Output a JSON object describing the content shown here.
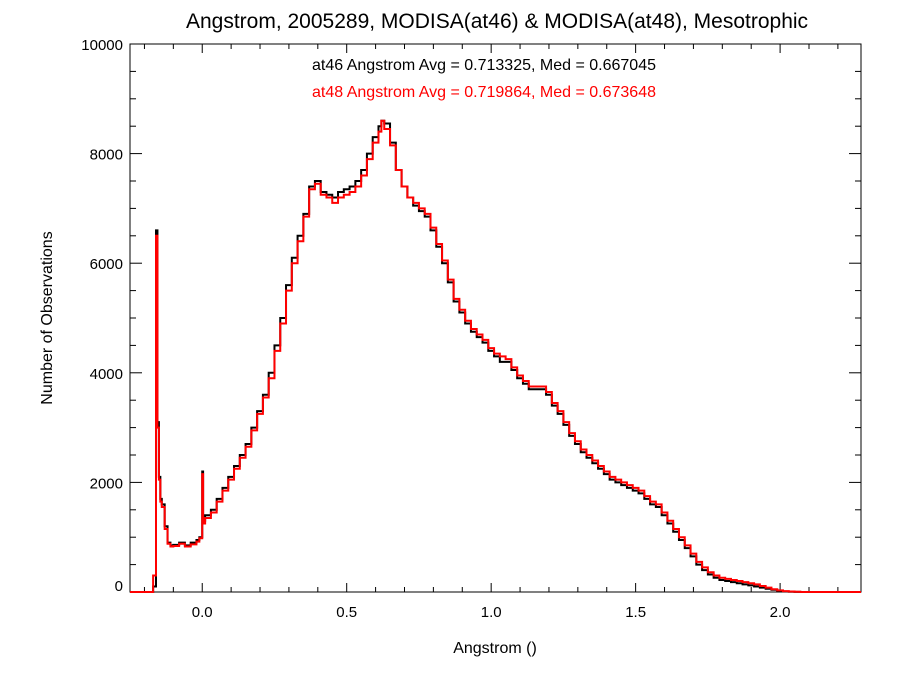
{
  "chart_data": {
    "type": "line",
    "title": "Angstrom, 2005289, MODISA(at46) & MODISA(at48), Mesotrophic",
    "xlabel": "Angstrom ()",
    "ylabel": "Number of Observations",
    "xlim": [
      -0.25,
      2.28
    ],
    "ylim": [
      0,
      10000
    ],
    "x_ticks": [
      0.0,
      0.5,
      1.0,
      1.5,
      2.0
    ],
    "x_tick_labels": [
      "0.0",
      "0.5",
      "1.0",
      "1.5",
      "2.0"
    ],
    "y_ticks": [
      0,
      2000,
      4000,
      6000,
      8000,
      10000
    ],
    "y_tick_labels": [
      "0",
      "2000",
      "4000",
      "6000",
      "8000",
      "10000"
    ],
    "grid": false,
    "annotations": [
      {
        "text": "at46 Angstrom Avg = 0.713325, Med = 0.667045",
        "color": "#000000"
      },
      {
        "text": "at48 Angstrom Avg = 0.719864, Med = 0.673648",
        "color": "#ff0000"
      }
    ],
    "series": [
      {
        "color": "#000000",
        "x": [
          -0.25,
          -0.17,
          -0.16,
          -0.155,
          -0.15,
          -0.145,
          -0.14,
          -0.13,
          -0.12,
          -0.11,
          -0.1,
          -0.08,
          -0.06,
          -0.04,
          -0.02,
          -0.01,
          0.0,
          0.003,
          0.01,
          0.03,
          0.05,
          0.07,
          0.09,
          0.11,
          0.13,
          0.15,
          0.17,
          0.19,
          0.21,
          0.23,
          0.25,
          0.27,
          0.29,
          0.31,
          0.33,
          0.35,
          0.37,
          0.39,
          0.41,
          0.43,
          0.45,
          0.47,
          0.49,
          0.51,
          0.53,
          0.55,
          0.57,
          0.59,
          0.61,
          0.62,
          0.63,
          0.65,
          0.67,
          0.69,
          0.71,
          0.73,
          0.75,
          0.77,
          0.79,
          0.81,
          0.83,
          0.85,
          0.87,
          0.89,
          0.91,
          0.93,
          0.95,
          0.97,
          0.99,
          1.01,
          1.03,
          1.05,
          1.07,
          1.09,
          1.11,
          1.13,
          1.15,
          1.17,
          1.19,
          1.21,
          1.23,
          1.25,
          1.27,
          1.29,
          1.31,
          1.33,
          1.35,
          1.37,
          1.39,
          1.41,
          1.43,
          1.45,
          1.47,
          1.49,
          1.51,
          1.53,
          1.55,
          1.57,
          1.59,
          1.61,
          1.63,
          1.65,
          1.67,
          1.69,
          1.71,
          1.73,
          1.75,
          1.77,
          1.79,
          1.81,
          1.83,
          1.85,
          1.87,
          1.89,
          1.91,
          1.93,
          1.95,
          1.97,
          1.99,
          2.01,
          2.03,
          2.05,
          2.07,
          2.09,
          2.11,
          2.13,
          2.15,
          2.28
        ],
        "y": [
          0,
          100,
          6600,
          3100,
          2100,
          1700,
          1600,
          1200,
          900,
          850,
          860,
          900,
          850,
          900,
          950,
          1000,
          2200,
          1300,
          1400,
          1500,
          1700,
          1900,
          2100,
          2300,
          2500,
          2700,
          3000,
          3300,
          3600,
          4000,
          4500,
          5000,
          5600,
          6100,
          6500,
          6900,
          7400,
          7500,
          7300,
          7250,
          7200,
          7300,
          7350,
          7400,
          7500,
          7700,
          8000,
          8300,
          8500,
          8600,
          8550,
          8200,
          7700,
          7400,
          7200,
          7050,
          6950,
          6850,
          6600,
          6300,
          6000,
          5650,
          5300,
          5100,
          4900,
          4750,
          4650,
          4550,
          4400,
          4300,
          4200,
          4200,
          4050,
          3900,
          3800,
          3700,
          3700,
          3700,
          3600,
          3400,
          3250,
          3050,
          2850,
          2700,
          2550,
          2450,
          2350,
          2250,
          2150,
          2050,
          2000,
          1950,
          1900,
          1850,
          1800,
          1700,
          1600,
          1550,
          1400,
          1250,
          1100,
          950,
          800,
          650,
          500,
          400,
          320,
          260,
          220,
          200,
          180,
          160,
          140,
          120,
          100,
          80,
          60,
          40,
          20,
          10,
          5,
          2,
          0,
          0,
          0,
          0,
          0,
          0
        ]
      },
      {
        "color": "#ff0000",
        "x": [
          -0.25,
          -0.17,
          -0.16,
          -0.155,
          -0.15,
          -0.145,
          -0.14,
          -0.13,
          -0.12,
          -0.11,
          -0.1,
          -0.08,
          -0.06,
          -0.04,
          -0.02,
          -0.01,
          0.0,
          0.003,
          0.01,
          0.03,
          0.05,
          0.07,
          0.09,
          0.11,
          0.13,
          0.15,
          0.17,
          0.19,
          0.21,
          0.23,
          0.25,
          0.27,
          0.29,
          0.31,
          0.33,
          0.35,
          0.37,
          0.39,
          0.41,
          0.43,
          0.45,
          0.47,
          0.49,
          0.51,
          0.53,
          0.55,
          0.57,
          0.59,
          0.61,
          0.62,
          0.63,
          0.65,
          0.67,
          0.69,
          0.71,
          0.73,
          0.75,
          0.77,
          0.79,
          0.81,
          0.83,
          0.85,
          0.87,
          0.89,
          0.91,
          0.93,
          0.95,
          0.97,
          0.99,
          1.01,
          1.03,
          1.05,
          1.07,
          1.09,
          1.11,
          1.13,
          1.15,
          1.17,
          1.19,
          1.21,
          1.23,
          1.25,
          1.27,
          1.29,
          1.31,
          1.33,
          1.35,
          1.37,
          1.39,
          1.41,
          1.43,
          1.45,
          1.47,
          1.49,
          1.51,
          1.53,
          1.55,
          1.57,
          1.59,
          1.61,
          1.63,
          1.65,
          1.67,
          1.69,
          1.71,
          1.73,
          1.75,
          1.77,
          1.79,
          1.81,
          1.83,
          1.85,
          1.87,
          1.89,
          1.91,
          1.93,
          1.95,
          1.97,
          1.99,
          2.01,
          2.03,
          2.05,
          2.07,
          2.09,
          2.11,
          2.13,
          2.15,
          2.28
        ],
        "y": [
          0,
          300,
          6500,
          3000,
          2050,
          1650,
          1550,
          1150,
          880,
          830,
          840,
          880,
          830,
          870,
          920,
          980,
          2150,
          1250,
          1350,
          1450,
          1650,
          1850,
          2050,
          2250,
          2450,
          2650,
          2950,
          3250,
          3550,
          3900,
          4400,
          4900,
          5500,
          6000,
          6400,
          6850,
          7350,
          7450,
          7250,
          7200,
          7100,
          7200,
          7250,
          7300,
          7400,
          7600,
          7900,
          8200,
          8400,
          8600,
          8450,
          8150,
          7700,
          7400,
          7200,
          7100,
          7000,
          6900,
          6650,
          6350,
          6050,
          5700,
          5350,
          5150,
          4950,
          4800,
          4700,
          4600,
          4450,
          4350,
          4300,
          4250,
          4100,
          3950,
          3850,
          3750,
          3750,
          3750,
          3650,
          3450,
          3300,
          3100,
          2900,
          2750,
          2600,
          2500,
          2400,
          2300,
          2200,
          2100,
          2050,
          2000,
          1950,
          1900,
          1850,
          1750,
          1650,
          1600,
          1450,
          1300,
          1150,
          1000,
          850,
          700,
          550,
          450,
          360,
          300,
          260,
          240,
          220,
          200,
          180,
          160,
          140,
          110,
          80,
          50,
          30,
          15,
          8,
          4,
          0,
          0,
          0,
          0,
          0,
          0
        ]
      }
    ]
  }
}
